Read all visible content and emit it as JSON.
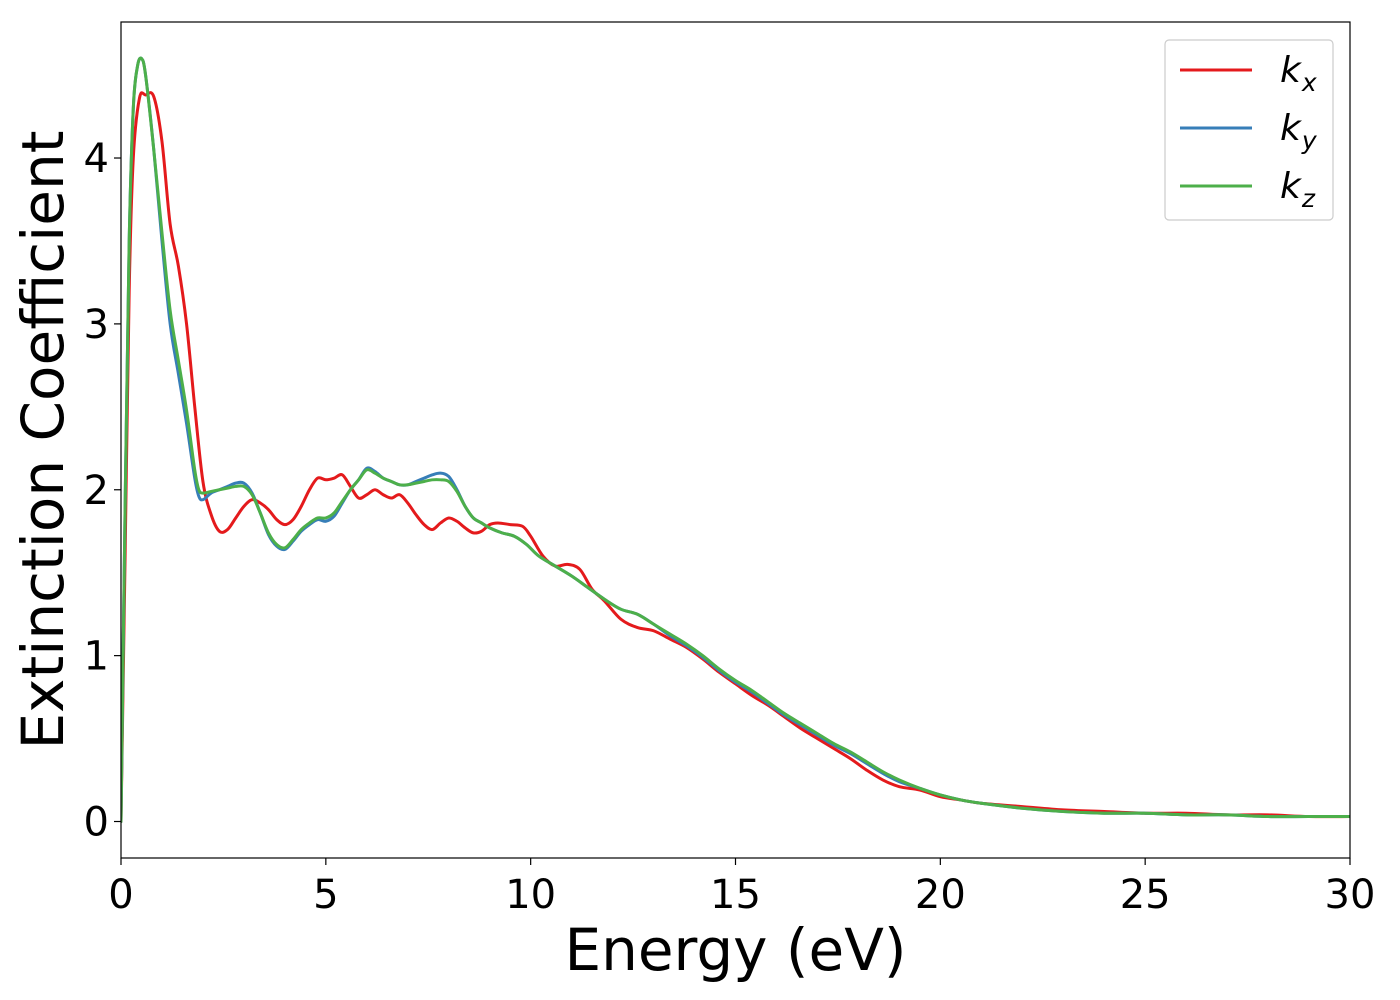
{
  "chart_data": {
    "type": "line",
    "title": "",
    "xlabel": "Energy (eV)",
    "ylabel": "Extinction Coefficient",
    "xlim": [
      0,
      30
    ],
    "ylim": [
      -0.22,
      4.82
    ],
    "xticks": [
      0,
      5,
      10,
      15,
      20,
      25,
      30
    ],
    "xtick_labels": [
      "0",
      "5",
      "10",
      "15",
      "20",
      "25",
      "30"
    ],
    "yticks": [
      0,
      1,
      2,
      3,
      4
    ],
    "ytick_labels": [
      "0",
      "1",
      "2",
      "3",
      "4"
    ],
    "grid": false,
    "legend_position": "top-right",
    "series": [
      {
        "name": "k_x",
        "legend_base": "k",
        "legend_sub": "x",
        "color": "#e41a1c",
        "x": [
          0,
          0.1,
          0.2,
          0.3,
          0.45,
          0.6,
          0.8,
          1.0,
          1.2,
          1.4,
          1.6,
          1.8,
          2.0,
          2.2,
          2.4,
          2.6,
          2.8,
          3.0,
          3.2,
          3.4,
          3.6,
          3.8,
          4.0,
          4.2,
          4.4,
          4.6,
          4.8,
          5.0,
          5.2,
          5.4,
          5.6,
          5.8,
          6.0,
          6.2,
          6.4,
          6.6,
          6.8,
          7.0,
          7.2,
          7.4,
          7.6,
          7.8,
          8.0,
          8.2,
          8.4,
          8.6,
          8.8,
          9.0,
          9.2,
          9.5,
          9.8,
          10.0,
          10.3,
          10.6,
          10.9,
          11.2,
          11.5,
          11.8,
          12.2,
          12.6,
          13.0,
          13.4,
          13.8,
          14.2,
          14.6,
          15.0,
          15.4,
          15.8,
          16.2,
          16.6,
          17.0,
          17.4,
          17.8,
          18.2,
          18.6,
          19.0,
          19.5,
          20.0,
          20.5,
          21.0,
          22.0,
          23.0,
          24.0,
          25.0,
          26.0,
          27.0,
          28.0,
          29.0,
          30.0
        ],
        "y": [
          0.0,
          1.6,
          3.2,
          4.0,
          4.36,
          4.38,
          4.37,
          4.1,
          3.6,
          3.35,
          3.0,
          2.5,
          2.05,
          1.85,
          1.75,
          1.76,
          1.83,
          1.9,
          1.94,
          1.92,
          1.88,
          1.82,
          1.79,
          1.82,
          1.9,
          2.0,
          2.07,
          2.06,
          2.07,
          2.09,
          2.02,
          1.95,
          1.97,
          2.0,
          1.97,
          1.95,
          1.97,
          1.92,
          1.85,
          1.79,
          1.76,
          1.8,
          1.83,
          1.81,
          1.77,
          1.74,
          1.75,
          1.79,
          1.8,
          1.79,
          1.78,
          1.72,
          1.6,
          1.54,
          1.55,
          1.52,
          1.4,
          1.33,
          1.22,
          1.17,
          1.15,
          1.1,
          1.05,
          0.98,
          0.9,
          0.83,
          0.76,
          0.7,
          0.63,
          0.56,
          0.5,
          0.44,
          0.38,
          0.31,
          0.25,
          0.21,
          0.19,
          0.15,
          0.13,
          0.11,
          0.09,
          0.07,
          0.06,
          0.05,
          0.05,
          0.04,
          0.04,
          0.03,
          0.03
        ]
      },
      {
        "name": "k_y",
        "legend_base": "k",
        "legend_sub": "y",
        "color": "#377eb8",
        "x": [
          0,
          0.1,
          0.2,
          0.3,
          0.4,
          0.5,
          0.6,
          0.8,
          1.0,
          1.2,
          1.4,
          1.6,
          1.8,
          1.9,
          2.0,
          2.2,
          2.4,
          2.6,
          2.8,
          3.0,
          3.2,
          3.4,
          3.6,
          3.8,
          4.0,
          4.2,
          4.4,
          4.6,
          4.8,
          5.0,
          5.2,
          5.4,
          5.6,
          5.8,
          6.0,
          6.2,
          6.4,
          6.6,
          6.8,
          7.0,
          7.2,
          7.4,
          7.6,
          7.8,
          8.0,
          8.2,
          8.4,
          8.6,
          8.8,
          9.0,
          9.3,
          9.6,
          9.9,
          10.2,
          10.6,
          11.0,
          11.4,
          11.8,
          12.2,
          12.6,
          13.0,
          13.4,
          13.8,
          14.2,
          14.6,
          15.0,
          15.4,
          15.8,
          16.2,
          16.6,
          17.0,
          17.4,
          17.8,
          18.2,
          18.6,
          19.0,
          19.5,
          20.0,
          20.5,
          21.0,
          22.0,
          23.0,
          24.0,
          25.0,
          26.0,
          27.0,
          28.0,
          29.0,
          30.0
        ],
        "y": [
          0.0,
          1.9,
          3.5,
          4.3,
          4.55,
          4.6,
          4.5,
          4.05,
          3.5,
          3.0,
          2.7,
          2.4,
          2.07,
          1.96,
          1.94,
          1.98,
          2.0,
          2.02,
          2.04,
          2.04,
          1.98,
          1.86,
          1.73,
          1.66,
          1.64,
          1.69,
          1.75,
          1.79,
          1.82,
          1.81,
          1.84,
          1.92,
          2.0,
          2.06,
          2.13,
          2.11,
          2.07,
          2.05,
          2.03,
          2.03,
          2.05,
          2.07,
          2.09,
          2.1,
          2.08,
          2.0,
          1.9,
          1.83,
          1.8,
          1.77,
          1.74,
          1.72,
          1.67,
          1.6,
          1.54,
          1.48,
          1.41,
          1.34,
          1.28,
          1.25,
          1.19,
          1.12,
          1.06,
          0.99,
          0.91,
          0.84,
          0.78,
          0.71,
          0.64,
          0.58,
          0.52,
          0.46,
          0.41,
          0.35,
          0.29,
          0.24,
          0.2,
          0.16,
          0.13,
          0.11,
          0.08,
          0.06,
          0.05,
          0.05,
          0.04,
          0.04,
          0.03,
          0.03,
          0.03
        ]
      },
      {
        "name": "k_z",
        "legend_base": "k",
        "legend_sub": "z",
        "color": "#4daf4a",
        "x": [
          0,
          0.1,
          0.2,
          0.3,
          0.4,
          0.5,
          0.6,
          0.8,
          1.0,
          1.2,
          1.4,
          1.6,
          1.8,
          1.9,
          2.0,
          2.2,
          2.4,
          2.6,
          2.8,
          3.0,
          3.2,
          3.4,
          3.6,
          3.8,
          4.0,
          4.2,
          4.4,
          4.6,
          4.8,
          5.0,
          5.2,
          5.4,
          5.6,
          5.8,
          6.0,
          6.2,
          6.4,
          6.6,
          6.8,
          7.0,
          7.2,
          7.4,
          7.6,
          7.8,
          8.0,
          8.2,
          8.4,
          8.6,
          8.8,
          9.0,
          9.3,
          9.6,
          9.9,
          10.2,
          10.6,
          11.0,
          11.4,
          11.8,
          12.2,
          12.6,
          13.0,
          13.4,
          13.8,
          14.2,
          14.6,
          15.0,
          15.4,
          15.8,
          16.2,
          16.6,
          17.0,
          17.4,
          17.8,
          18.2,
          18.6,
          19.0,
          19.5,
          20.0,
          20.5,
          21.0,
          22.0,
          23.0,
          24.0,
          25.0,
          26.0,
          27.0,
          28.0,
          29.0,
          30.0
        ],
        "y": [
          0.0,
          1.9,
          3.5,
          4.3,
          4.55,
          4.6,
          4.5,
          4.05,
          3.55,
          3.08,
          2.78,
          2.48,
          2.12,
          2.0,
          1.98,
          1.99,
          2.0,
          2.01,
          2.02,
          2.02,
          1.97,
          1.86,
          1.74,
          1.67,
          1.65,
          1.7,
          1.76,
          1.8,
          1.83,
          1.83,
          1.86,
          1.93,
          2.0,
          2.06,
          2.12,
          2.1,
          2.07,
          2.05,
          2.03,
          2.03,
          2.04,
          2.05,
          2.06,
          2.06,
          2.05,
          1.99,
          1.9,
          1.83,
          1.8,
          1.77,
          1.74,
          1.72,
          1.67,
          1.6,
          1.54,
          1.48,
          1.41,
          1.34,
          1.28,
          1.25,
          1.19,
          1.13,
          1.07,
          1.0,
          0.92,
          0.85,
          0.79,
          0.72,
          0.65,
          0.59,
          0.53,
          0.47,
          0.42,
          0.36,
          0.3,
          0.25,
          0.2,
          0.16,
          0.13,
          0.11,
          0.08,
          0.06,
          0.05,
          0.05,
          0.04,
          0.04,
          0.03,
          0.03,
          0.03
        ]
      }
    ]
  }
}
